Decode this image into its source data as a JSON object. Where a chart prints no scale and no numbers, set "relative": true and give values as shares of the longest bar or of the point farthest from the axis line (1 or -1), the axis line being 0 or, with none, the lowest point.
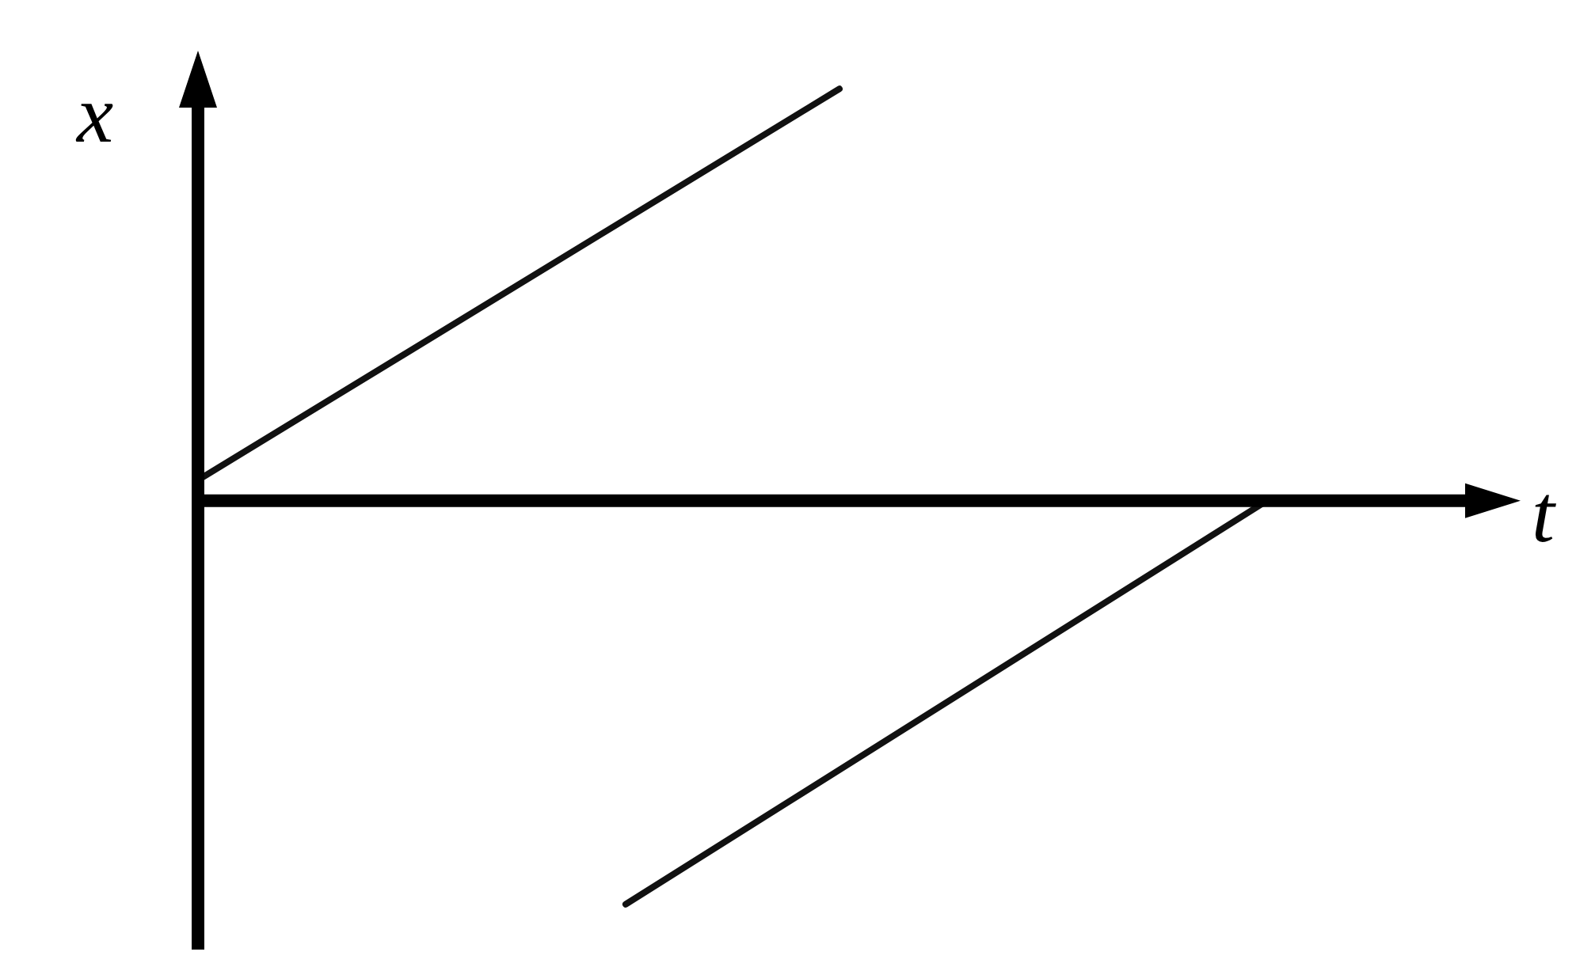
{
  "chart_data": {
    "type": "line",
    "relative": true,
    "xlabel": "t",
    "ylabel": "x",
    "categories": [
      null,
      null,
      null,
      null,
      null,
      null,
      null,
      null,
      null,
      null,
      null,
      null,
      null
    ],
    "marker": "none",
    "line_style": "solid",
    "legend": false,
    "series": [
      {
        "color": "#111111",
        "values": [
          0.05,
          null,
          null,
          null,
          null,
          null,
          1,
          null,
          null,
          null,
          null,
          null,
          null
        ]
      },
      {
        "color": "#111111",
        "values": [
          null,
          null,
          null,
          null,
          -0.98,
          null,
          null,
          null,
          null,
          null,
          0,
          null,
          null
        ]
      }
    ]
  }
}
